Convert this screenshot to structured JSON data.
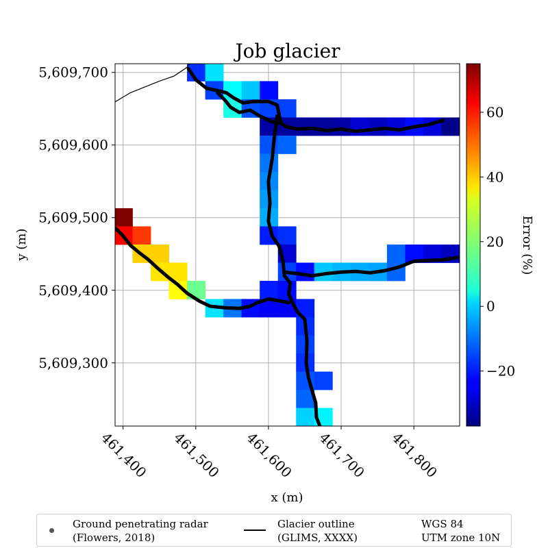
{
  "chart_data": {
    "type": "heatmap",
    "title": "Job glacier",
    "xlabel": "x (m)",
    "ylabel": "y (m)",
    "xlim": [
      461389,
      461863
    ],
    "ylim": [
      609213,
      609712
    ],
    "grid": true,
    "x_ticks": [
      {
        "value": 461400,
        "label": "461,400"
      },
      {
        "value": 461500,
        "label": "461,500"
      },
      {
        "value": 461600,
        "label": "461,600"
      },
      {
        "value": 461700,
        "label": "461,700"
      },
      {
        "value": 461800,
        "label": "461,800"
      }
    ],
    "y_ticks": [
      {
        "value": 609300,
        "label": "5,609,300"
      },
      {
        "value": 609400,
        "label": "5,609,400"
      },
      {
        "value": 609500,
        "label": "5,609,500"
      },
      {
        "value": 609600,
        "label": "5,609,600"
      },
      {
        "value": 609700,
        "label": "5,609,700"
      }
    ],
    "colorbar": {
      "label": "Error (%)",
      "colormap": "jet",
      "min": -37,
      "max": 75,
      "ticks": [
        {
          "value": -20,
          "label": "−20"
        },
        {
          "value": 0,
          "label": "0"
        },
        {
          "value": 20,
          "label": "20"
        },
        {
          "value": 40,
          "label": "40"
        },
        {
          "value": 60,
          "label": "60"
        }
      ]
    },
    "cell_size": 25,
    "cells": [
      {
        "x": 461488,
        "y": 609688,
        "value": -18
      },
      {
        "x": 461513,
        "y": 609688,
        "value": 2
      },
      {
        "x": 461513,
        "y": 609663,
        "value": -16
      },
      {
        "x": 461538,
        "y": 609663,
        "value": 5
      },
      {
        "x": 461563,
        "y": 609663,
        "value": -1
      },
      {
        "x": 461588,
        "y": 609663,
        "value": -22
      },
      {
        "x": 461538,
        "y": 609638,
        "value": 8
      },
      {
        "x": 461563,
        "y": 609638,
        "value": -14
      },
      {
        "x": 461588,
        "y": 609638,
        "value": -16
      },
      {
        "x": 461613,
        "y": 609638,
        "value": -16
      },
      {
        "x": 461588,
        "y": 609613,
        "value": -33
      },
      {
        "x": 461613,
        "y": 609613,
        "value": -34
      },
      {
        "x": 461638,
        "y": 609613,
        "value": -34
      },
      {
        "x": 461663,
        "y": 609613,
        "value": -34
      },
      {
        "x": 461688,
        "y": 609613,
        "value": -33
      },
      {
        "x": 461713,
        "y": 609613,
        "value": -28
      },
      {
        "x": 461738,
        "y": 609613,
        "value": -30
      },
      {
        "x": 461763,
        "y": 609613,
        "value": -27
      },
      {
        "x": 461788,
        "y": 609613,
        "value": -22
      },
      {
        "x": 461813,
        "y": 609613,
        "value": -27
      },
      {
        "x": 461838,
        "y": 609613,
        "value": -36
      },
      {
        "x": 461588,
        "y": 609588,
        "value": -14
      },
      {
        "x": 461613,
        "y": 609588,
        "value": -12
      },
      {
        "x": 461588,
        "y": 609563,
        "value": -10
      },
      {
        "x": 461588,
        "y": 609538,
        "value": -8
      },
      {
        "x": 461588,
        "y": 609513,
        "value": -6
      },
      {
        "x": 461588,
        "y": 609488,
        "value": -4
      },
      {
        "x": 461588,
        "y": 609463,
        "value": -20
      },
      {
        "x": 461613,
        "y": 609463,
        "value": -18
      },
      {
        "x": 461388,
        "y": 609488,
        "value": 75
      },
      {
        "x": 461388,
        "y": 609463,
        "value": 62
      },
      {
        "x": 461413,
        "y": 609463,
        "value": 55
      },
      {
        "x": 461413,
        "y": 609438,
        "value": 38
      },
      {
        "x": 461438,
        "y": 609438,
        "value": 38
      },
      {
        "x": 461438,
        "y": 609413,
        "value": 36
      },
      {
        "x": 461463,
        "y": 609413,
        "value": 36
      },
      {
        "x": 461463,
        "y": 609388,
        "value": 33
      },
      {
        "x": 461488,
        "y": 609388,
        "value": 17
      },
      {
        "x": 461613,
        "y": 609438,
        "value": -28
      },
      {
        "x": 461613,
        "y": 609413,
        "value": -16
      },
      {
        "x": 461638,
        "y": 609413,
        "value": -22
      },
      {
        "x": 461663,
        "y": 609413,
        "value": -1
      },
      {
        "x": 461688,
        "y": 609413,
        "value": -3
      },
      {
        "x": 461713,
        "y": 609413,
        "value": -4
      },
      {
        "x": 461738,
        "y": 609413,
        "value": -5
      },
      {
        "x": 461763,
        "y": 609413,
        "value": -12
      },
      {
        "x": 461763,
        "y": 609438,
        "value": -12
      },
      {
        "x": 461788,
        "y": 609438,
        "value": -22
      },
      {
        "x": 461813,
        "y": 609438,
        "value": -27
      },
      {
        "x": 461838,
        "y": 609438,
        "value": -30
      },
      {
        "x": 461588,
        "y": 609388,
        "value": -20
      },
      {
        "x": 461613,
        "y": 609388,
        "value": -22
      },
      {
        "x": 461513,
        "y": 609363,
        "value": 2
      },
      {
        "x": 461538,
        "y": 609363,
        "value": -10
      },
      {
        "x": 461563,
        "y": 609363,
        "value": -22
      },
      {
        "x": 461588,
        "y": 609363,
        "value": -24
      },
      {
        "x": 461613,
        "y": 609363,
        "value": -24
      },
      {
        "x": 461638,
        "y": 609363,
        "value": -20
      },
      {
        "x": 461638,
        "y": 609338,
        "value": -18
      },
      {
        "x": 461638,
        "y": 609313,
        "value": -16
      },
      {
        "x": 461638,
        "y": 609288,
        "value": -18
      },
      {
        "x": 461638,
        "y": 609263,
        "value": -14
      },
      {
        "x": 461663,
        "y": 609263,
        "value": -16
      },
      {
        "x": 461638,
        "y": 609238,
        "value": -12
      },
      {
        "x": 461638,
        "y": 609213,
        "value": 0
      },
      {
        "x": 461663,
        "y": 609213,
        "value": 4
      }
    ],
    "gpr_tracks": [
      [
        [
          461490,
          609705
        ],
        [
          461500,
          609690
        ],
        [
          461515,
          609678
        ],
        [
          461530,
          609675
        ],
        [
          461542,
          609672
        ],
        [
          461552,
          609665
        ],
        [
          461565,
          609658
        ],
        [
          461580,
          609660
        ],
        [
          461600,
          609660
        ],
        [
          461612,
          609655
        ],
        [
          461617,
          609630
        ],
        [
          461625,
          609625
        ],
        [
          461640,
          609622
        ],
        [
          461660,
          609623
        ],
        [
          461680,
          609620
        ],
        [
          461700,
          609622
        ],
        [
          461720,
          609619
        ],
        [
          461740,
          609621
        ],
        [
          461760,
          609623
        ],
        [
          461780,
          609621
        ],
        [
          461800,
          609625
        ],
        [
          461820,
          609628
        ],
        [
          461840,
          609634
        ]
      ],
      [
        [
          461530,
          609672
        ],
        [
          461540,
          609662
        ],
        [
          461548,
          609652
        ],
        [
          461560,
          609645
        ],
        [
          461575,
          609648
        ],
        [
          461588,
          609640
        ],
        [
          461605,
          609632
        ],
        [
          461617,
          609630
        ]
      ],
      [
        [
          461612,
          609640
        ],
        [
          461608,
          609610
        ],
        [
          461605,
          609580
        ],
        [
          461600,
          609550
        ],
        [
          461602,
          609520
        ],
        [
          461600,
          609495
        ],
        [
          461605,
          609475
        ],
        [
          461615,
          609460
        ],
        [
          461620,
          609440
        ],
        [
          461622,
          609420
        ],
        [
          461630,
          609410
        ],
        [
          461628,
          609395
        ],
        [
          461632,
          609385
        ],
        [
          461640,
          609370
        ],
        [
          461650,
          609360
        ],
        [
          461653,
          609330
        ],
        [
          461652,
          609300
        ],
        [
          461655,
          609280
        ],
        [
          461660,
          609262
        ],
        [
          461665,
          609245
        ],
        [
          461666,
          609225
        ],
        [
          461672,
          609210
        ],
        [
          461680,
          609203
        ]
      ],
      [
        [
          461622,
          609425
        ],
        [
          461640,
          609423
        ],
        [
          461660,
          609420
        ],
        [
          461680,
          609423
        ],
        [
          461700,
          609425
        ],
        [
          461720,
          609426
        ],
        [
          461740,
          609424
        ],
        [
          461760,
          609427
        ],
        [
          461780,
          609432
        ],
        [
          461800,
          609440
        ],
        [
          461820,
          609441
        ],
        [
          461840,
          609442
        ],
        [
          461860,
          609445
        ]
      ],
      [
        [
          461390,
          609485
        ],
        [
          461400,
          609475
        ],
        [
          461410,
          609462
        ],
        [
          461422,
          609452
        ],
        [
          461435,
          609442
        ],
        [
          461448,
          609430
        ],
        [
          461462,
          609418
        ],
        [
          461475,
          609408
        ],
        [
          461488,
          609396
        ],
        [
          461505,
          609385
        ],
        [
          461520,
          609378
        ],
        [
          461540,
          609376
        ],
        [
          461560,
          609375
        ],
        [
          461575,
          609378
        ],
        [
          461585,
          609383
        ],
        [
          461600,
          609388
        ],
        [
          461612,
          609386
        ],
        [
          461628,
          609383
        ]
      ]
    ],
    "glacier_outline": [
      [
        461378,
        609650
      ],
      [
        461390,
        609660
      ],
      [
        461410,
        609672
      ],
      [
        461430,
        609680
      ],
      [
        461450,
        609688
      ],
      [
        461470,
        609695
      ],
      [
        461488,
        609707
      ],
      [
        461496,
        609722
      ]
    ],
    "legend": {
      "location": "bottom",
      "entries": [
        {
          "marker": "dot",
          "text": "Ground penetrating radar\n(Flowers, 2018)"
        },
        {
          "marker": "line",
          "text": "Glacier outline\n(GLIMS, XXXX)"
        },
        {
          "marker": "none",
          "text": "WGS 84\nUTM zone 10N"
        }
      ]
    }
  },
  "colors": {
    "grid": "#b0b0b0",
    "track": "#000000",
    "outline": "#000000",
    "legend_marker": "#555555",
    "legend_border": "#cfcfcf"
  }
}
